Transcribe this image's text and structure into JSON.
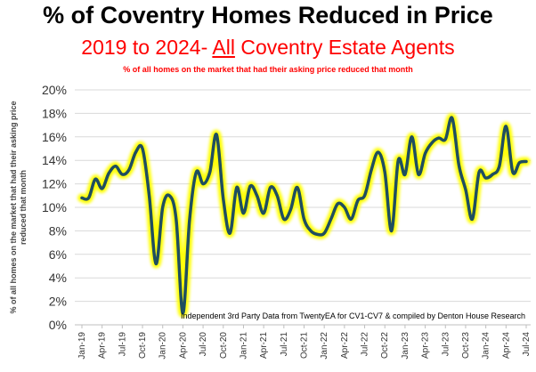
{
  "title": "% of Coventry Homes Reduced in Price",
  "subtitle_pre": "2019 to 2024- ",
  "subtitle_emph": "All",
  "subtitle_post": " Coventry Estate Agents",
  "note": "% of all homes on the market that had their asking price reduced that month",
  "chart_data": {
    "type": "line",
    "title": "% of Coventry Homes Reduced in Price",
    "ylabel": "% of all homes on the market that had their asking price reduced that month",
    "xlabel": "",
    "ylim": [
      0,
      20
    ],
    "yticks": [
      "0%",
      "2%",
      "4%",
      "6%",
      "8%",
      "10%",
      "12%",
      "14%",
      "16%",
      "18%",
      "20%"
    ],
    "grid": true,
    "line_color": "#1f4e5f",
    "glow_color": "#ffff00",
    "annotation": "Independent 3rd Party Data from TwentyEA for CV1-CV7 & compiled by Denton House Research",
    "xticks": [
      "Jan-19",
      "Apr-19",
      "Jul-19",
      "Oct-19",
      "Jan-20",
      "Apr-20",
      "Jul-20",
      "Oct-20",
      "Jan-21",
      "Apr-21",
      "Jul-21",
      "Oct-21",
      "Jan-22",
      "Apr-22",
      "Jul-22",
      "Oct-22",
      "Jan-23",
      "Apr-23",
      "Jul-23",
      "Oct-23",
      "Jan-24",
      "Apr-24",
      "Jul-24"
    ],
    "values": [
      10.8,
      10.8,
      12.4,
      11.6,
      12.9,
      13.5,
      12.8,
      13.2,
      14.7,
      15,
      11,
      5.2,
      10,
      11,
      9,
      1,
      9,
      13,
      12,
      13,
      16.2,
      10.7,
      7.8,
      11.7,
      9.5,
      11.8,
      11,
      9.5,
      11.7,
      11,
      9,
      9.8,
      11.7,
      9,
      8,
      7.7,
      7.8,
      9,
      10.3,
      10,
      9,
      10.6,
      11,
      13.2,
      14.7,
      13,
      8,
      14,
      12.8,
      16,
      12.8,
      14.6,
      15.5,
      15.9,
      15.8,
      17.6,
      13.6,
      11.5,
      9,
      13,
      12.5,
      12.8,
      13.5,
      16.9,
      13,
      13.8,
      13.9
    ]
  }
}
